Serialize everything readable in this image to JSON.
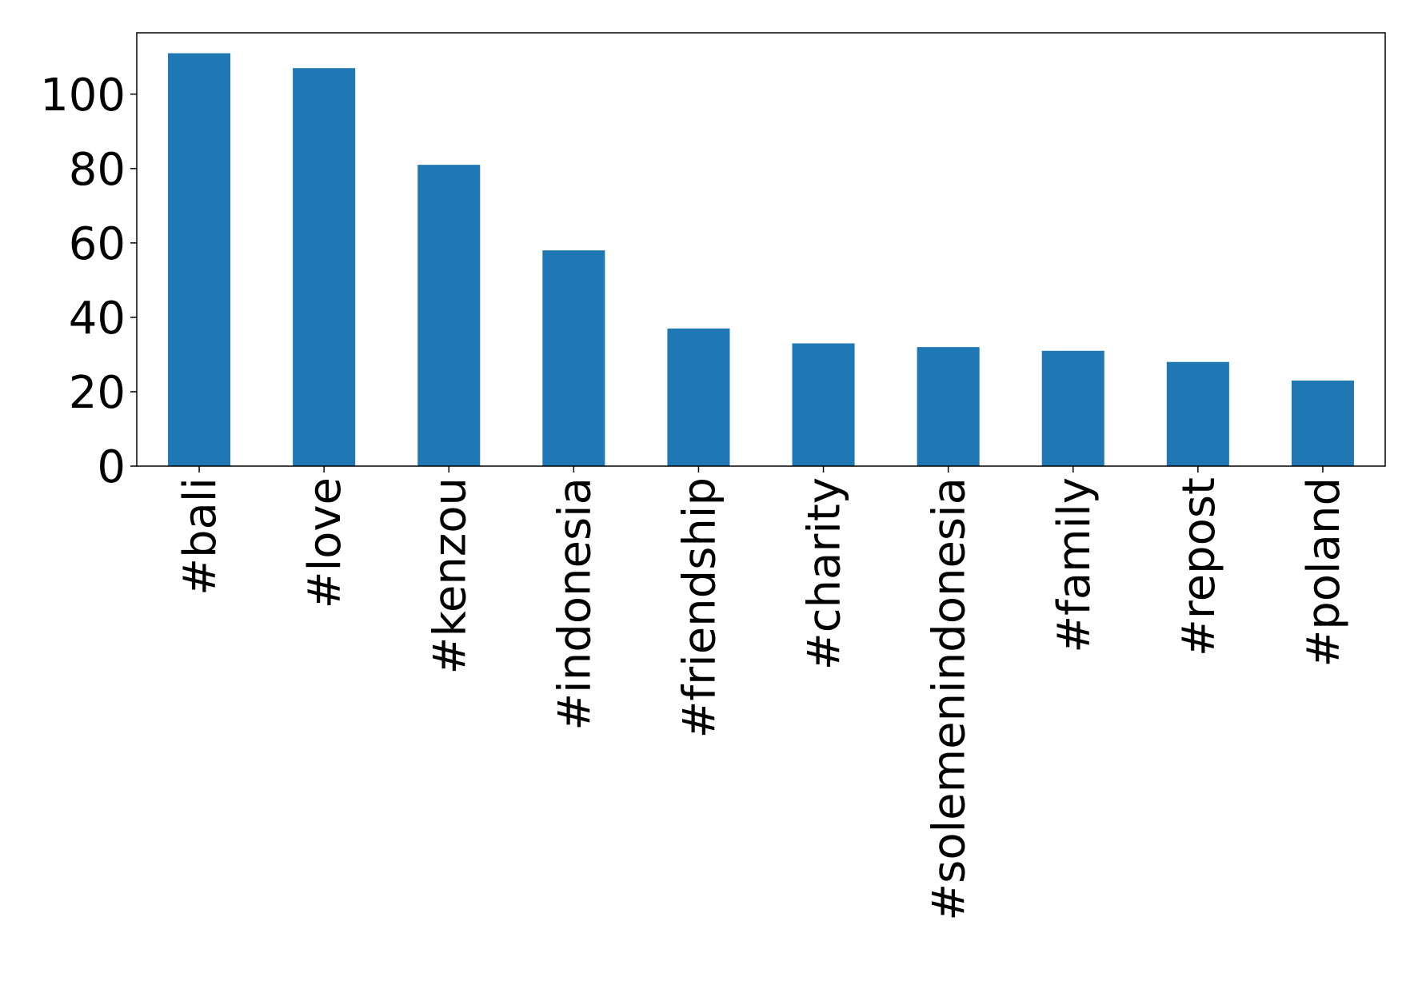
{
  "chart_data": {
    "type": "bar",
    "categories": [
      "#bali",
      "#love",
      "#kenzou",
      "#indonesia",
      "#friendship",
      "#charity",
      "#solemenindonesia",
      "#family",
      "#repost",
      "#poland"
    ],
    "values": [
      111,
      107,
      81,
      58,
      37,
      33,
      32,
      31,
      28,
      23
    ],
    "color": "#1f77b4",
    "ylim": [
      0,
      116.5
    ],
    "yticks": [
      0,
      20,
      40,
      60,
      80,
      100
    ]
  }
}
